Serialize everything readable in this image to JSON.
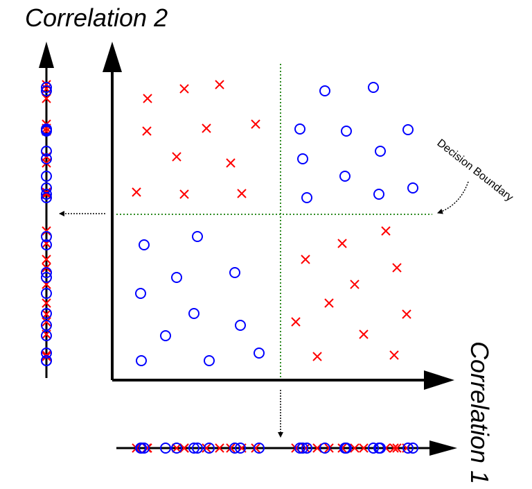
{
  "labels": {
    "x_axis_title": "Correlation 1",
    "y_axis_title": "Correlation 2",
    "annotation": "Decision Boundary"
  },
  "colors": {
    "class_x": "#ff0000",
    "class_o": "#0000ff",
    "boundary": "#2e8b22",
    "axis": "#000000"
  },
  "chart_data": {
    "type": "scatter",
    "series": [
      {
        "marker": "x",
        "color": "#ff0000",
        "points": [
          [
            213,
            142
          ],
          [
            266,
            128
          ],
          [
            317,
            122
          ],
          [
            212,
            189
          ],
          [
            298,
            185
          ],
          [
            369,
            179
          ],
          [
            255,
            226
          ],
          [
            333,
            235
          ],
          [
            197,
            277
          ],
          [
            266,
            280
          ],
          [
            349,
            279
          ],
          [
            557,
            333
          ],
          [
            494,
            351
          ],
          [
            441,
            374
          ],
          [
            573,
            386
          ],
          [
            512,
            410
          ],
          [
            475,
            437
          ],
          [
            427,
            464
          ],
          [
            587,
            453
          ],
          [
            525,
            482
          ],
          [
            458,
            514
          ],
          [
            569,
            512
          ]
        ]
      },
      {
        "marker": "o",
        "color": "#0000ff",
        "points": [
          [
            469,
            131
          ],
          [
            539,
            126
          ],
          [
            433,
            186
          ],
          [
            500,
            189
          ],
          [
            589,
            187
          ],
          [
            549,
            218
          ],
          [
            437,
            229
          ],
          [
            498,
            254
          ],
          [
            443,
            285
          ],
          [
            547,
            280
          ],
          [
            596,
            271
          ],
          [
            208,
            353
          ],
          [
            285,
            341
          ],
          [
            255,
            400
          ],
          [
            339,
            393
          ],
          [
            203,
            423
          ],
          [
            280,
            452
          ],
          [
            347,
            469
          ],
          [
            239,
            484
          ],
          [
            204,
            520
          ],
          [
            302,
            520
          ],
          [
            374,
            509
          ]
        ]
      }
    ]
  }
}
